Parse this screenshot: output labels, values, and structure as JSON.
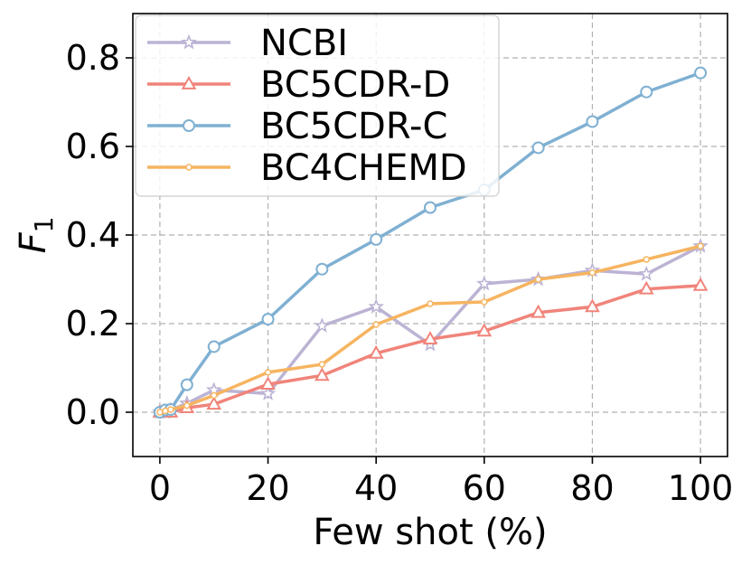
{
  "chart_data": {
    "type": "line",
    "title": "",
    "xlabel": "Few shot (%)",
    "ylabel": "F",
    "ylabel_subscript": "1",
    "xlim": [
      -5,
      105
    ],
    "ylim": [
      -0.1,
      0.9
    ],
    "xticks": [
      0,
      20,
      40,
      60,
      80,
      100
    ],
    "yticks": [
      0.0,
      0.2,
      0.4,
      0.6,
      0.8
    ],
    "xtick_labels": [
      "0",
      "20",
      "40",
      "60",
      "80",
      "100"
    ],
    "ytick_labels": [
      "0.0",
      "0.2",
      "0.4",
      "0.6",
      "0.8"
    ],
    "grid": true,
    "legend_position": "top-left",
    "series": [
      {
        "name": "NCBI",
        "color": "#bcb3d4",
        "marker": "star",
        "x": [
          0,
          1,
          2,
          5,
          10,
          20,
          30,
          40,
          50,
          60,
          70,
          80,
          90,
          100
        ],
        "y": [
          0.0,
          0.0,
          0.005,
          0.02,
          0.05,
          0.042,
          0.195,
          0.238,
          0.153,
          0.29,
          0.3,
          0.32,
          0.312,
          0.375
        ]
      },
      {
        "name": "BC5CDR-D",
        "color": "#f0847a",
        "marker": "triangle",
        "x": [
          0,
          1,
          2,
          5,
          10,
          20,
          30,
          40,
          50,
          60,
          70,
          80,
          90,
          100
        ],
        "y": [
          0.0,
          0.0,
          0.0,
          0.01,
          0.018,
          0.063,
          0.083,
          0.133,
          0.165,
          0.183,
          0.225,
          0.238,
          0.278,
          0.286
        ]
      },
      {
        "name": "BC5CDR-C",
        "color": "#7fb0d2",
        "marker": "circle",
        "x": [
          0,
          1,
          2,
          5,
          10,
          20,
          30,
          40,
          50,
          60,
          70,
          80,
          90,
          100
        ],
        "y": [
          0.0,
          0.005,
          0.006,
          0.062,
          0.148,
          0.21,
          0.323,
          0.39,
          0.462,
          0.502,
          0.597,
          0.656,
          0.723,
          0.766
        ]
      },
      {
        "name": "BC4CHEMD",
        "color": "#f6b460",
        "marker": "small-circle",
        "x": [
          0,
          1,
          2,
          5,
          10,
          20,
          30,
          40,
          50,
          60,
          70,
          80,
          90,
          100
        ],
        "y": [
          0.0,
          0.003,
          0.006,
          0.015,
          0.038,
          0.09,
          0.108,
          0.198,
          0.245,
          0.249,
          0.3,
          0.315,
          0.345,
          0.375
        ]
      }
    ]
  }
}
